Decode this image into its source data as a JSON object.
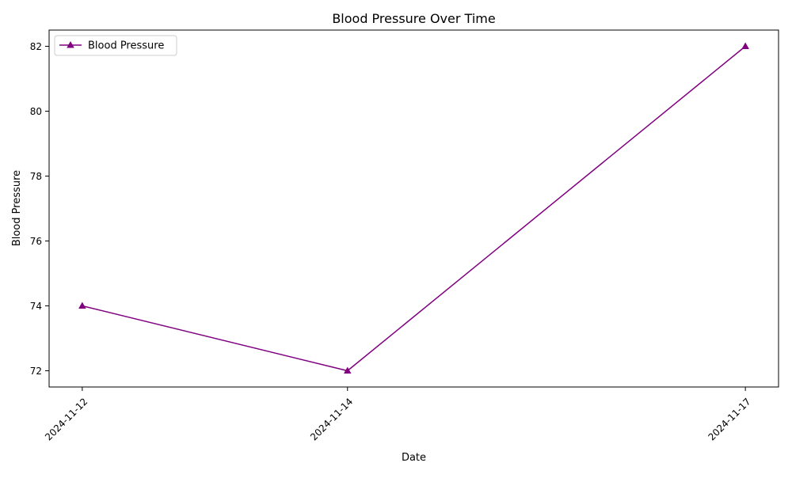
{
  "chart_data": {
    "type": "line",
    "title": "Blood Pressure Over Time",
    "xlabel": "Date",
    "ylabel": "Blood Pressure",
    "categories": [
      "2024-11-12",
      "2024-11-14",
      "2024-11-17"
    ],
    "series": [
      {
        "name": "Blood Pressure",
        "values": [
          74,
          72,
          82
        ],
        "color": "#800080",
        "marker": "triangle-up"
      }
    ],
    "yticks": [
      72,
      74,
      76,
      78,
      80,
      82
    ],
    "ylim": [
      71.5,
      82.5
    ],
    "grid": false,
    "legend_position": "top-left",
    "x_tick_rotation": 45
  }
}
